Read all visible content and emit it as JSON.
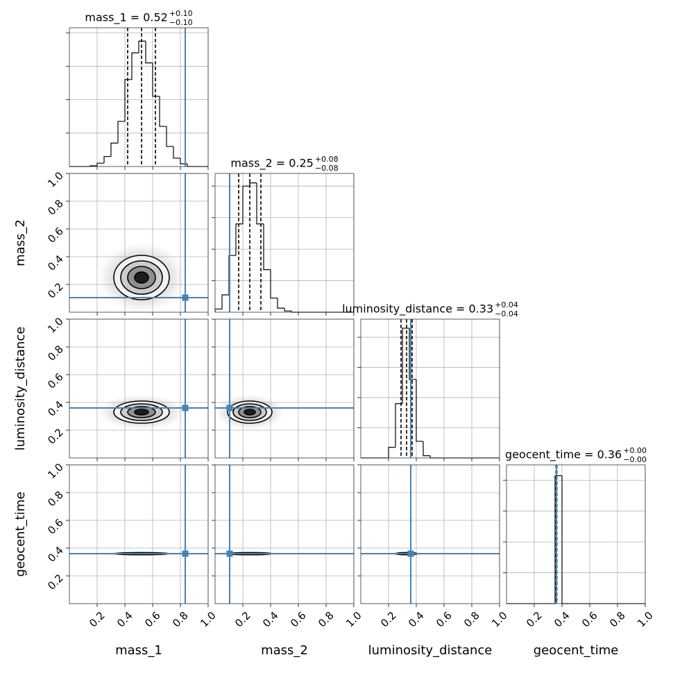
{
  "chart_data": {
    "type": "corner",
    "parameters": [
      {
        "name": "mass_1",
        "title": "mass_1 = 0.52",
        "plus": "+0.10",
        "minus": "−0.10",
        "quantiles": [
          0.42,
          0.52,
          0.62
        ],
        "truth": 0.835,
        "sigma": 0.1,
        "bins": [
          0,
          0.05,
          0.1,
          0.15,
          0.2,
          0.25,
          0.3,
          0.35,
          0.4,
          0.45,
          0.5,
          0.55,
          0.6,
          0.65,
          0.7,
          0.75,
          0.8,
          0.85,
          0.9,
          0.95,
          1
        ],
        "values": [
          0,
          0,
          0,
          0.02,
          0.1,
          0.3,
          0.7,
          1.35,
          2.6,
          3.4,
          3.75,
          3.1,
          2.1,
          1.2,
          0.6,
          0.25,
          0.08,
          0,
          0,
          0
        ],
        "ylim": [
          0,
          4.15
        ],
        "yticks": [
          1,
          2,
          3,
          4
        ]
      },
      {
        "name": "mass_2",
        "title": "mass_2 = 0.25",
        "plus": "+0.08",
        "minus": "−0.08",
        "quantiles": [
          0.17,
          0.25,
          0.33
        ],
        "truth": 0.105,
        "sigma": 0.08,
        "bins": [
          0,
          0.05,
          0.1,
          0.15,
          0.2,
          0.25,
          0.3,
          0.35,
          0.4,
          0.45,
          0.5,
          0.55,
          0.6,
          0.65,
          0.7,
          0.75,
          0.8,
          0.85,
          0.9,
          0.95,
          1
        ],
        "values": [
          0.1,
          0.55,
          1.8,
          2.8,
          4.0,
          4.1,
          2.8,
          1.35,
          0.45,
          0.13,
          0.04,
          0,
          0,
          0,
          0,
          0,
          0,
          0,
          0,
          0
        ],
        "ylim": [
          0,
          4.4
        ],
        "yticks": [
          1,
          2,
          3,
          4
        ]
      },
      {
        "name": "luminosity_distance",
        "title": "luminosity_distance = 0.33",
        "plus": "+0.04",
        "minus": "−0.04",
        "quantiles": [
          0.29,
          0.33,
          0.37
        ],
        "truth": 0.36,
        "sigma": 0.04,
        "bins": [
          0,
          0.05,
          0.1,
          0.15,
          0.2,
          0.25,
          0.3,
          0.35,
          0.4,
          0.45,
          0.5,
          0.55,
          0.6,
          0.65,
          0.7,
          0.75,
          0.8,
          0.85,
          0.9,
          0.95,
          1
        ],
        "values": [
          0,
          0,
          0,
          0,
          0.7,
          3.6,
          8.6,
          5.2,
          1.1,
          0.15,
          0,
          0,
          0,
          0,
          0,
          0,
          0,
          0,
          0,
          0
        ],
        "ylim": [
          0,
          9.2
        ],
        "yticks": [
          2,
          4,
          6,
          8
        ]
      },
      {
        "name": "geocent_time",
        "title": "geocent_time = 0.36",
        "plus": "+0.00",
        "minus": "−0.00",
        "quantiles": [
          0.357,
          0.36,
          0.363
        ],
        "truth": 0.36,
        "sigma": 0.004,
        "bins": [
          0,
          0.05,
          0.1,
          0.15,
          0.2,
          0.25,
          0.3,
          0.35,
          0.4,
          0.45,
          0.5,
          0.55,
          0.6,
          0.65,
          0.7,
          0.75,
          0.8,
          0.85,
          0.9,
          0.95,
          1
        ],
        "values": [
          0,
          0,
          0,
          0,
          0,
          0,
          0,
          83,
          0,
          0,
          0,
          0,
          0,
          0,
          0,
          0,
          0,
          0,
          0,
          0
        ],
        "ylim": [
          0,
          90
        ],
        "yticks": [
          20,
          40,
          60,
          80
        ]
      }
    ],
    "xlim": [
      0,
      1
    ],
    "ylim": [
      0,
      1
    ],
    "ticks": [
      0.2,
      0.4,
      0.6,
      0.8,
      {
        "value": 1,
        "label": "1.0"
      }
    ],
    "contour_sigmas": [
      2,
      1.5,
      1,
      0.5
    ],
    "truth_color": "#4682b4",
    "hist_color": "#000000",
    "grid": true
  }
}
